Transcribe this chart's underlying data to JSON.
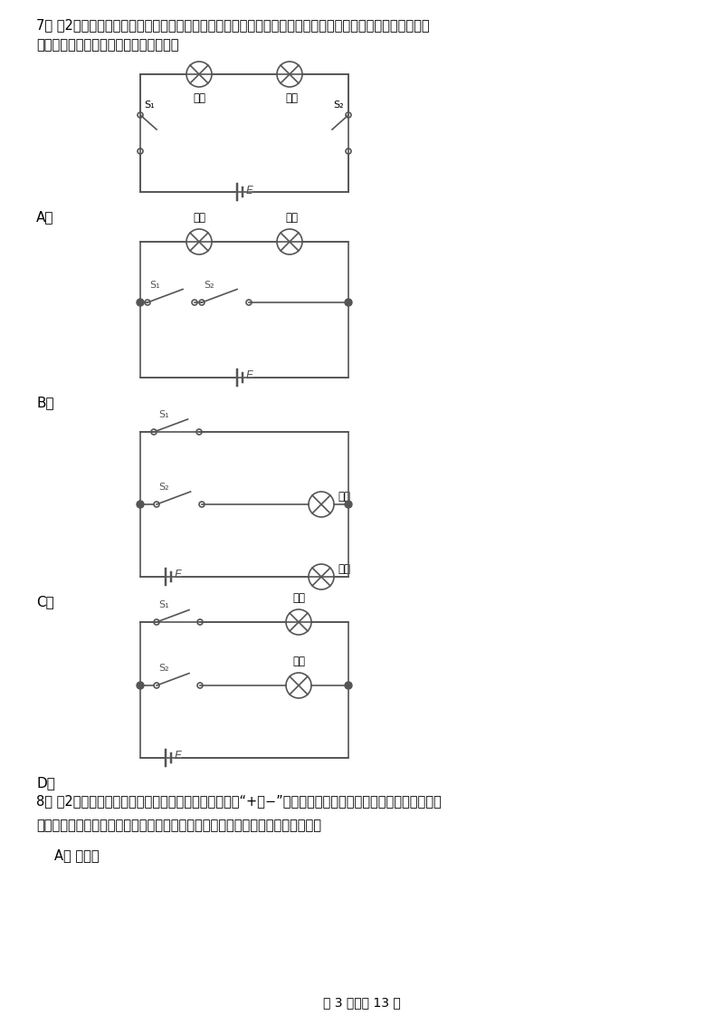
{
  "bg_color": "#ffffff",
  "text_color": "#000000",
  "line_color": "#555555",
  "title_text": "7． （2分）某班同学在开展综合实践活动中，对十字路口的红续交通信号灯进行了观察，画出了下列控制红、",
  "title_text2": "绿灯的电路图，你认为可行的是（　　）",
  "q8_line1": "8． （2分）小明同学有二个相同的新型电池，因电池的“+、−”极标记模糊不清，现有定值电阵、导线若干，",
  "q8_line2": "再加一种器材来辨别电池的正负极，以下选项中无法辨别电池正负极的是（　　）",
  "q8_optA": "A． 小灯泡",
  "page_footer": "第 3 页　共 13 页",
  "label_A": "A．",
  "label_B": "B．",
  "label_C": "C．",
  "label_D": "D．"
}
